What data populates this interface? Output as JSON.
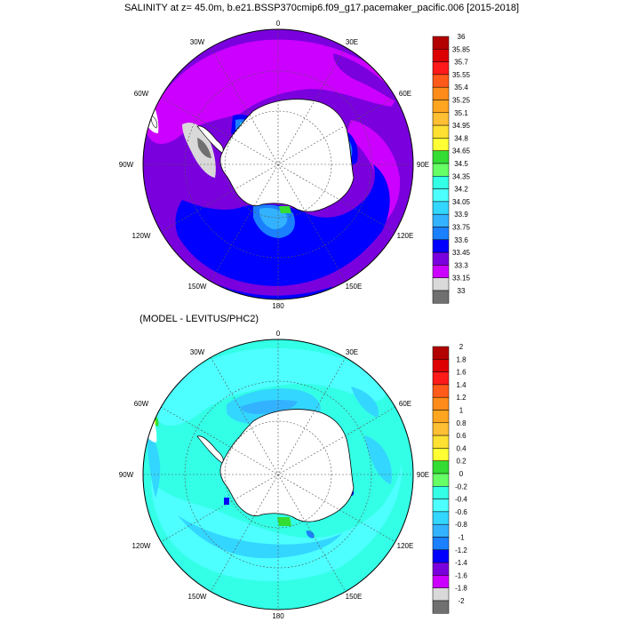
{
  "title": "SALINITY at z=  45.0m, b.e21.BSSP370cmip6.f09_g17.pacemaker_pacific.006 [2015-2018]",
  "lon_labels": [
    "0",
    "30E",
    "60E",
    "90E",
    "120E",
    "150E",
    "180",
    "150W",
    "120W",
    "90W",
    "60W",
    "30W"
  ],
  "panels": [
    {
      "id": "top",
      "subtitle": "",
      "field": "salinity",
      "colorbar": {
        "levels": [
          "36",
          "35.85",
          "35.7",
          "35.55",
          "35.4",
          "35.25",
          "35.1",
          "34.95",
          "34.8",
          "34.65",
          "34.5",
          "34.35",
          "34.2",
          "34.05",
          "33.9",
          "33.75",
          "33.6",
          "33.45",
          "33.3",
          "33.15",
          "33"
        ],
        "colors": [
          "#b30000",
          "#dd0000",
          "#ff1a1a",
          "#ff5a1a",
          "#ff8c1a",
          "#ffa51f",
          "#ffbf33",
          "#ffe033",
          "#ffff33",
          "#33dd33",
          "#66ff66",
          "#33ffe6",
          "#4dffff",
          "#33d6ff",
          "#33b3ff",
          "#1a80ff",
          "#0000ff",
          "#7a00dd",
          "#cc00ff",
          "#d9d9d9",
          "#707070"
        ]
      }
    },
    {
      "id": "bottom",
      "subtitle": "(MODEL - LEVITUS/PHC2)",
      "field": "difference",
      "colorbar": {
        "levels": [
          "2",
          "1.8",
          "1.6",
          "1.4",
          "1.2",
          "1",
          "0.8",
          "0.6",
          "0.4",
          "0.2",
          "0",
          "-0.2",
          "-0.4",
          "-0.6",
          "-0.8",
          "-1",
          "-1.2",
          "-1.4",
          "-1.6",
          "-1.8",
          "-2"
        ],
        "colors": [
          "#b30000",
          "#dd0000",
          "#ff1a1a",
          "#ff5a1a",
          "#ff8c1a",
          "#ffa51f",
          "#ffbf33",
          "#ffe033",
          "#ffff33",
          "#33dd33",
          "#66ff66",
          "#33ffe6",
          "#4dffff",
          "#33d6ff",
          "#33b3ff",
          "#1a80ff",
          "#0000ff",
          "#7a00dd",
          "#cc00ff",
          "#d9d9d9",
          "#707070"
        ]
      }
    }
  ]
}
